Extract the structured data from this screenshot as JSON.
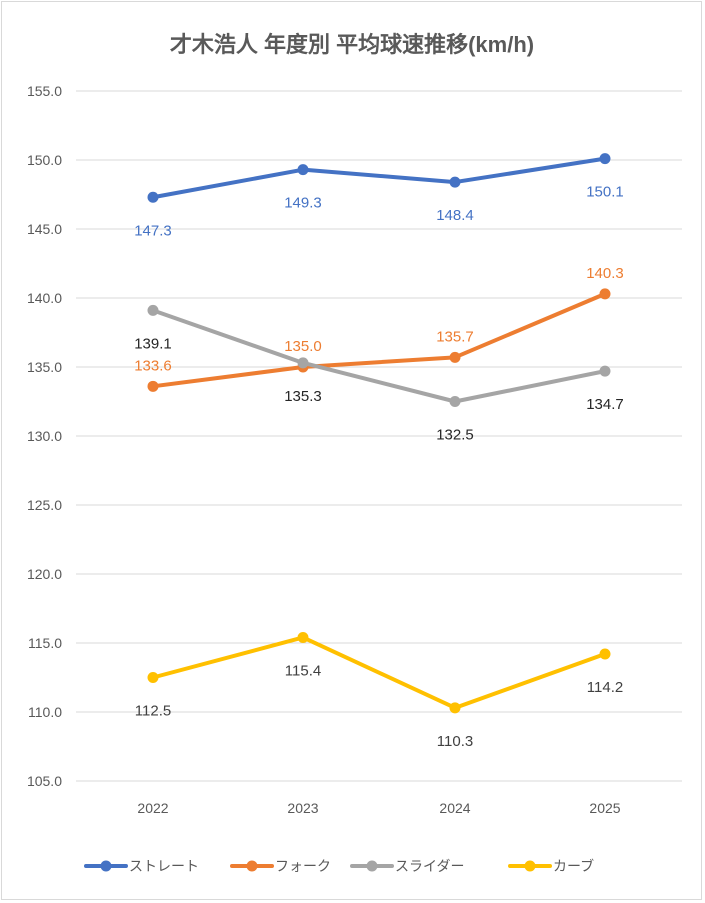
{
  "chart_data": {
    "type": "line",
    "title": "才木浩人 年度別 平均球速推移(km/h)",
    "categories": [
      "2022",
      "2023",
      "2024",
      "2025"
    ],
    "ylim": [
      105.0,
      155.0
    ],
    "yticks": [
      "105.0",
      "110.0",
      "115.0",
      "120.0",
      "125.0",
      "130.0",
      "135.0",
      "140.0",
      "145.0",
      "150.0",
      "155.0"
    ],
    "ytick_values": [
      105,
      110,
      115,
      120,
      125,
      130,
      135,
      140,
      145,
      150,
      155
    ],
    "grid": true,
    "legend_position": "bottom",
    "series": [
      {
        "name": "ストレート",
        "color": "#4472C4",
        "label_color": "#4472C4",
        "values": [
          147.3,
          149.3,
          148.4,
          150.1
        ],
        "labels": [
          "147.3",
          "149.3",
          "148.4",
          "150.1"
        ],
        "label_side": [
          "below",
          "below",
          "below",
          "below"
        ]
      },
      {
        "name": "フォーク",
        "color": "#ED7D31",
        "label_color": "#ED7D31",
        "values": [
          133.6,
          135.0,
          135.7,
          140.3
        ],
        "labels": [
          "133.6",
          "135.0",
          "135.7",
          "140.3"
        ],
        "label_side": [
          "above",
          "above",
          "above",
          "above"
        ]
      },
      {
        "name": "スライダー",
        "color": "#A5A5A5",
        "label_color": "#262626",
        "values": [
          139.1,
          135.3,
          132.5,
          134.7
        ],
        "labels": [
          "139.1",
          "135.3",
          "132.5",
          "134.7"
        ],
        "label_side": [
          "below",
          "below",
          "below",
          "below"
        ]
      },
      {
        "name": "カーブ",
        "color": "#FFC000",
        "label_color": "#404040",
        "values": [
          112.5,
          115.4,
          110.3,
          114.2
        ],
        "labels": [
          "112.5",
          "115.4",
          "110.3",
          "114.2"
        ],
        "label_side": [
          "below",
          "below",
          "below",
          "below"
        ]
      }
    ]
  }
}
